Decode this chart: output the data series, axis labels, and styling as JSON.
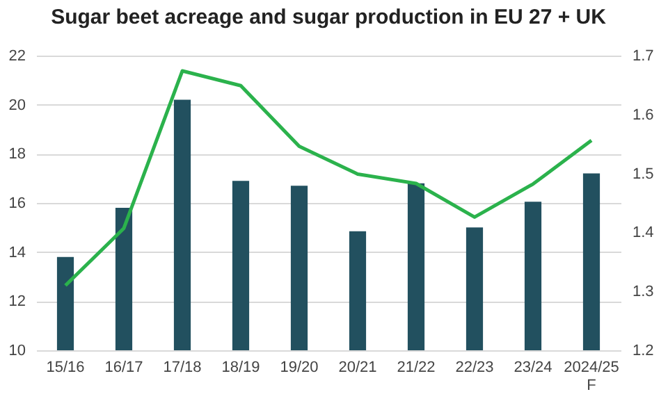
{
  "chart_data": {
    "type": "bar",
    "title": "Sugar beet acreage and sugar production in EU 27 + UK",
    "categories": [
      "15/16",
      "16/17",
      "17/18",
      "18/19",
      "19/20",
      "20/21",
      "21/22",
      "22/23",
      "23/24",
      "2024/25 F"
    ],
    "series": [
      {
        "color": "#22505f",
        "values": [
          13.8,
          15.8,
          20.2,
          16.9,
          16.7,
          14.85,
          16.8,
          15.0,
          16.05,
          17.2
        ]
      },
      {
        "type": "line",
        "axis": "y2",
        "color": "#2bb24c",
        "values": [
          1.31,
          1.407,
          1.674,
          1.649,
          1.546,
          1.499,
          1.483,
          1.426,
          1.482,
          1.556
        ]
      }
    ],
    "ylim": [
      10,
      22
    ],
    "yticks": [
      10,
      12,
      14,
      16,
      18,
      20,
      22
    ],
    "y2lim": [
      1.2,
      1.7
    ],
    "y2ticks": [
      1.2,
      1.3,
      1.4,
      1.5,
      1.6,
      1.7
    ],
    "grid": "y",
    "marker": "none",
    "line_style": "solid"
  }
}
